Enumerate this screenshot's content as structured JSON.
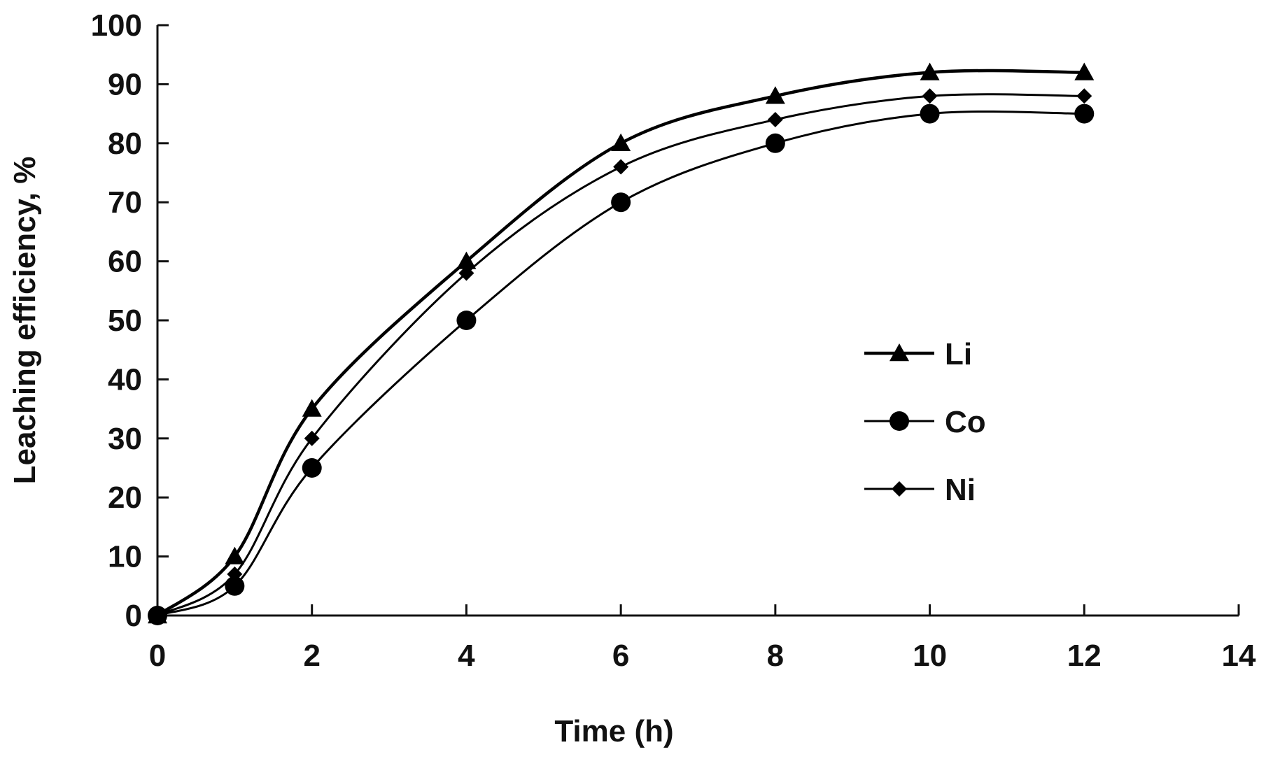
{
  "chart_data": {
    "type": "line",
    "title": "",
    "xlabel": "Time (h)",
    "ylabel": "Leaching efficiency, %",
    "xlim": [
      0,
      14
    ],
    "ylim": [
      0,
      100
    ],
    "x_ticks": [
      "0",
      "2",
      "4",
      "6",
      "8",
      "10",
      "12",
      "14"
    ],
    "y_ticks": [
      "0",
      "10",
      "20",
      "30",
      "40",
      "50",
      "60",
      "70",
      "80",
      "90",
      "100"
    ],
    "grid": false,
    "legend_position": "right",
    "x": [
      0,
      1,
      2,
      4,
      6,
      8,
      10,
      12
    ],
    "series": [
      {
        "name": "Li",
        "marker": "triangle",
        "color": "#000000",
        "values": [
          0,
          10,
          35,
          60,
          80,
          88,
          92,
          92
        ]
      },
      {
        "name": "Co",
        "marker": "circle",
        "color": "#000000",
        "values": [
          0,
          5,
          25,
          50,
          70,
          80,
          85,
          85
        ]
      },
      {
        "name": "Ni",
        "marker": "diamond",
        "color": "#000000",
        "values": [
          0,
          7,
          30,
          58,
          76,
          84,
          88,
          88
        ]
      }
    ]
  }
}
